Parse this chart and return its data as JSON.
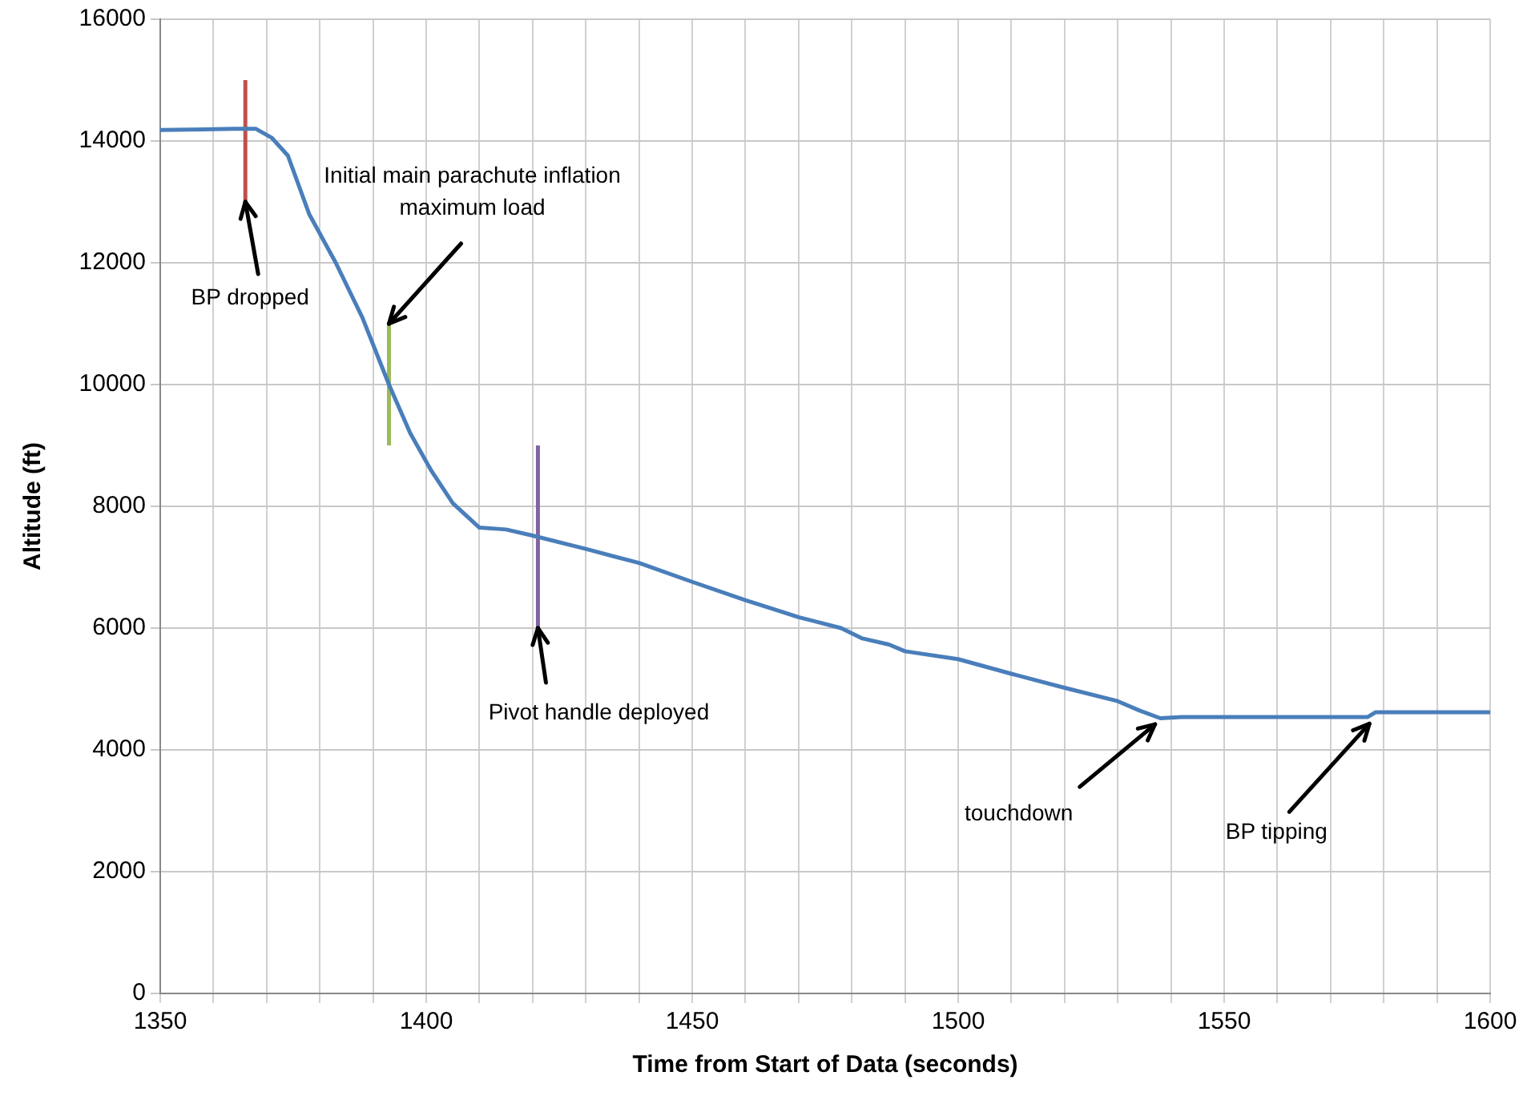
{
  "chart_data": {
    "type": "line",
    "xlabel": "Time from Start of Data (seconds)",
    "ylabel": "Altitude (ft)",
    "xlim": [
      1350,
      1600
    ],
    "ylim": [
      0,
      16000
    ],
    "xticks": [
      1350,
      {
        "value": 1360,
        "label": null
      },
      {
        "value": 1370,
        "label": null
      },
      {
        "value": 1380,
        "label": null
      },
      {
        "value": 1390,
        "label": null
      },
      1400,
      {
        "value": 1410,
        "label": null
      },
      {
        "value": 1420,
        "label": null
      },
      {
        "value": 1430,
        "label": null
      },
      {
        "value": 1440,
        "label": null
      },
      1450,
      {
        "value": 1460,
        "label": null
      },
      {
        "value": 1470,
        "label": null
      },
      {
        "value": 1480,
        "label": null
      },
      {
        "value": 1490,
        "label": null
      },
      1500,
      {
        "value": 1510,
        "label": null
      },
      {
        "value": 1520,
        "label": null
      },
      {
        "value": 1530,
        "label": null
      },
      {
        "value": 1540,
        "label": null
      },
      1550,
      {
        "value": 1560,
        "label": null
      },
      {
        "value": 1570,
        "label": null
      },
      {
        "value": 1580,
        "label": null
      },
      {
        "value": 1590,
        "label": null
      },
      1600
    ],
    "yticks": [
      0,
      2000,
      4000,
      6000,
      8000,
      10000,
      12000,
      14000,
      16000
    ],
    "grid": true,
    "legend": false,
    "marker": "none",
    "line_style": "solid",
    "series": [
      {
        "color": "#4a7ebb",
        "x": [
          1350,
          1364,
          1368,
          1371,
          1374,
          1378,
          1383,
          1388,
          1393,
          1397,
          1401,
          1405,
          1410,
          1415,
          1420,
          1430,
          1440,
          1450,
          1460,
          1470,
          1478,
          1482,
          1487,
          1490,
          1500,
          1510,
          1520,
          1530,
          1534,
          1538,
          1542,
          1577,
          1578.5,
          1600
        ],
        "values": [
          14180,
          14200,
          14200,
          14050,
          13760,
          12800,
          12000,
          11100,
          10000,
          9200,
          8580,
          8050,
          7650,
          7620,
          7520,
          7300,
          7070,
          6760,
          6460,
          6180,
          6000,
          5830,
          5730,
          5620,
          5490,
          5250,
          5020,
          4800,
          4650,
          4520,
          4540,
          4540,
          4620,
          4620
        ]
      },
      {
        "type": "line",
        "color": "#c0504d",
        "x": [
          1366,
          1366
        ],
        "values": [
          13000,
          15000
        ]
      },
      {
        "type": "line",
        "color": "#9bbb59",
        "x": [
          1393,
          1393
        ],
        "values": [
          9000,
          11000
        ]
      },
      {
        "type": "line",
        "color": "#8064a2",
        "x": [
          1421,
          1421
        ],
        "values": [
          6000,
          9000
        ]
      }
    ],
    "annotations": [
      {
        "text": "BP dropped",
        "x": 1366,
        "y": 13000
      },
      {
        "text": "Initial main parachute inflation\nmaximum load",
        "x": 1393,
        "y": 11000
      },
      {
        "text": "Pivot handle deployed",
        "x": 1421,
        "y": 6000
      },
      {
        "text": "touchdown",
        "x": 1537,
        "y": 4420
      },
      {
        "text": "BP tipping",
        "x": 1577.3,
        "y": 4430
      }
    ]
  }
}
